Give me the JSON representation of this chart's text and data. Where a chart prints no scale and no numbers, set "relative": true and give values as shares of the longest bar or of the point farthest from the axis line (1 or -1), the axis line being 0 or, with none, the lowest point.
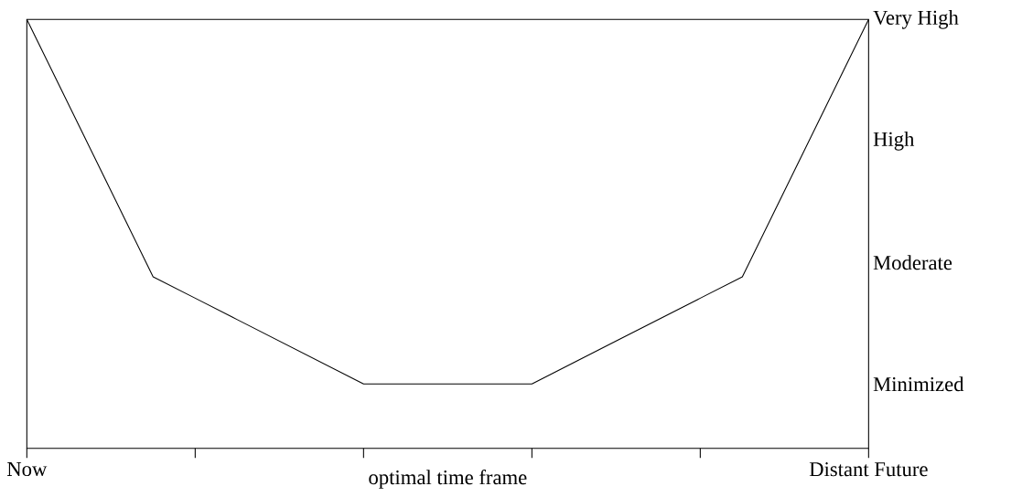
{
  "chart_data": {
    "type": "line",
    "xlabel": "optimal time frame",
    "relative": true,
    "categories": [
      "Now",
      null,
      null,
      null,
      null,
      null,
      null,
      null,
      null,
      null,
      null,
      null,
      null,
      null,
      null,
      null,
      null,
      null,
      null,
      null,
      "Distant Future"
    ],
    "series": [
      {
        "color": "#000000",
        "values": [
          1,
          0.8,
          0.6,
          0.4,
          0.35,
          0.3,
          0.25,
          0.2,
          0.15,
          0.15,
          0.15,
          0.15,
          0.15,
          0.2,
          0.25,
          0.3,
          0.35,
          0.4,
          0.6,
          0.8,
          1
        ]
      }
    ],
    "annotations": [
      "Minimized",
      "Moderate",
      "High",
      "Very High"
    ],
    "grid": false,
    "marker": "none",
    "line_style": "solid"
  }
}
